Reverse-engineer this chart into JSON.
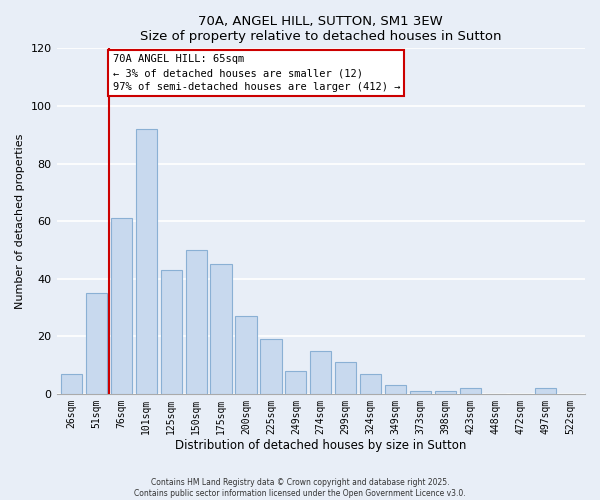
{
  "title": "70A, ANGEL HILL, SUTTON, SM1 3EW",
  "subtitle": "Size of property relative to detached houses in Sutton",
  "xlabel": "Distribution of detached houses by size in Sutton",
  "ylabel": "Number of detached properties",
  "bar_labels": [
    "26sqm",
    "51sqm",
    "76sqm",
    "101sqm",
    "125sqm",
    "150sqm",
    "175sqm",
    "200sqm",
    "225sqm",
    "249sqm",
    "274sqm",
    "299sqm",
    "324sqm",
    "349sqm",
    "373sqm",
    "398sqm",
    "423sqm",
    "448sqm",
    "472sqm",
    "497sqm",
    "522sqm"
  ],
  "bar_values": [
    7,
    35,
    61,
    92,
    43,
    50,
    45,
    27,
    19,
    8,
    15,
    11,
    7,
    3,
    1,
    1,
    2,
    0,
    0,
    2,
    0
  ],
  "bar_color": "#c8d9ee",
  "bar_edge_color": "#8ab0d4",
  "vline_x": 1.5,
  "vline_color": "#cc0000",
  "annotation_title": "70A ANGEL HILL: 65sqm",
  "annotation_line1": "← 3% of detached houses are smaller (12)",
  "annotation_line2": "97% of semi-detached houses are larger (412) →",
  "annotation_box_facecolor": "#ffffff",
  "annotation_box_edgecolor": "#cc0000",
  "ylim": [
    0,
    120
  ],
  "yticks": [
    0,
    20,
    40,
    60,
    80,
    100,
    120
  ],
  "background_color": "#e8eef7",
  "grid_color": "#ffffff",
  "footer_line1": "Contains HM Land Registry data © Crown copyright and database right 2025.",
  "footer_line2": "Contains public sector information licensed under the Open Government Licence v3.0."
}
